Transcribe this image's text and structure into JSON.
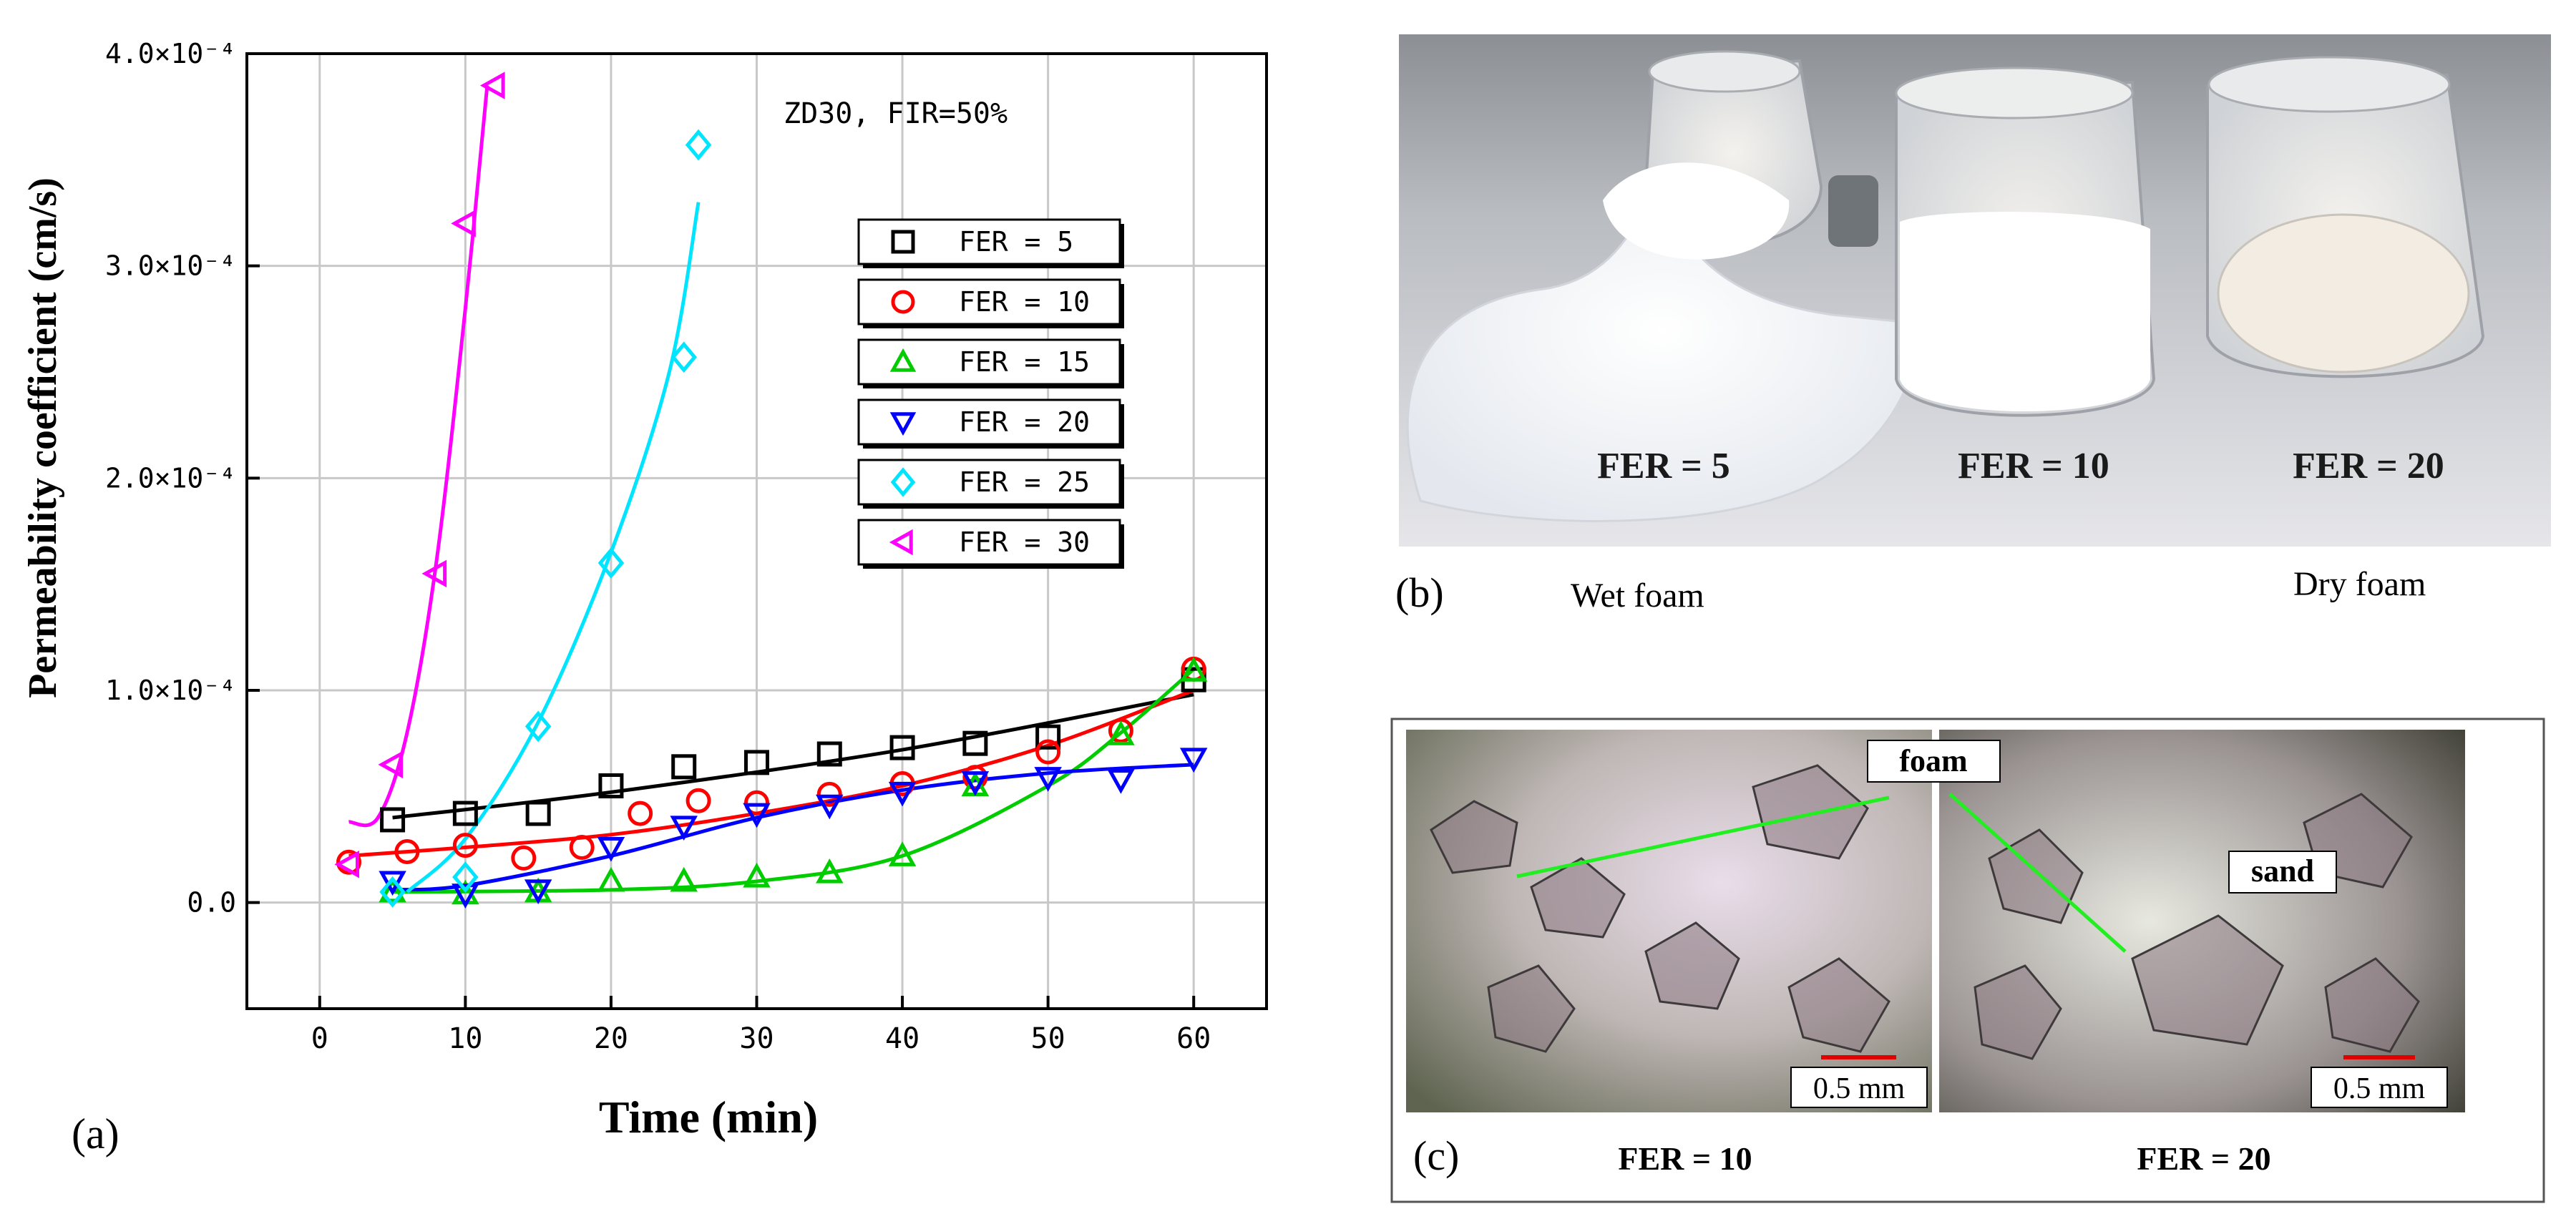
{
  "panel_a": {
    "label": "(a)",
    "annotation": "ZD30,  FIR=50%",
    "chart_data": {
      "type": "scatter",
      "title": "",
      "xlabel": "Time (min)",
      "ylabel": "Permeability coefficient (cm/s)",
      "xlim": [
        -5,
        65
      ],
      "ylim": [
        -0.5,
        4.0
      ],
      "x_ticks": [
        0,
        10,
        20,
        30,
        40,
        50,
        60
      ],
      "y_ticks": [
        {
          "value": 0.0,
          "label": "0.0"
        },
        {
          "value": 1.0,
          "label": "1.0×10⁻⁴"
        },
        {
          "value": 2.0,
          "label": "2.0×10⁻⁴"
        },
        {
          "value": 3.0,
          "label": "3.0×10⁻⁴"
        },
        {
          "value": 4.0,
          "label": "4.0×10⁻⁴"
        }
      ],
      "grid": true,
      "legend_position": "right",
      "series": [
        {
          "name": "FER = 5",
          "marker": "square",
          "color": "#000000",
          "x": [
            5,
            10,
            15,
            20,
            25,
            30,
            35,
            40,
            45,
            50,
            60
          ],
          "y": [
            0.39,
            0.42,
            0.42,
            0.55,
            0.64,
            0.66,
            0.7,
            0.73,
            0.75,
            0.78,
            1.05
          ],
          "fit": [
            [
              5,
              0.4
            ],
            [
              20,
              0.52
            ],
            [
              40,
              0.72
            ],
            [
              60,
              0.98
            ]
          ]
        },
        {
          "name": "FER = 10",
          "marker": "circle",
          "color": "#ff0000",
          "x": [
            2,
            6,
            10,
            14,
            18,
            22,
            26,
            30,
            35,
            40,
            45,
            50,
            55,
            60
          ],
          "y": [
            0.19,
            0.24,
            0.27,
            0.21,
            0.26,
            0.42,
            0.48,
            0.47,
            0.51,
            0.56,
            0.59,
            0.71,
            0.81,
            1.1
          ],
          "fit": [
            [
              2,
              0.22
            ],
            [
              10,
              0.26
            ],
            [
              20,
              0.32
            ],
            [
              30,
              0.42
            ],
            [
              40,
              0.55
            ],
            [
              50,
              0.74
            ],
            [
              60,
              1.0
            ]
          ]
        },
        {
          "name": "FER = 15",
          "marker": "triangle-up",
          "color": "#00cc00",
          "x": [
            5,
            10,
            15,
            20,
            25,
            30,
            35,
            40,
            45,
            55,
            60
          ],
          "y": [
            0.05,
            0.04,
            0.05,
            0.1,
            0.1,
            0.12,
            0.14,
            0.22,
            0.55,
            0.79,
            1.09
          ],
          "fit": [
            [
              5,
              0.05
            ],
            [
              20,
              0.06
            ],
            [
              30,
              0.1
            ],
            [
              40,
              0.22
            ],
            [
              50,
              0.55
            ],
            [
              55,
              0.8
            ],
            [
              60,
              1.1
            ]
          ]
        },
        {
          "name": "FER = 20",
          "marker": "triangle-down",
          "color": "#0000ff",
          "x": [
            5,
            10,
            15,
            20,
            25,
            30,
            35,
            40,
            45,
            50,
            55,
            60
          ],
          "y": [
            0.1,
            0.04,
            0.06,
            0.26,
            0.36,
            0.42,
            0.46,
            0.52,
            0.57,
            0.59,
            0.58,
            0.68
          ],
          "fit": [
            [
              5,
              0.06
            ],
            [
              10,
              0.08
            ],
            [
              20,
              0.22
            ],
            [
              30,
              0.4
            ],
            [
              40,
              0.53
            ],
            [
              50,
              0.61
            ],
            [
              60,
              0.65
            ]
          ]
        },
        {
          "name": "FER = 25",
          "marker": "diamond",
          "color": "#00e5ff",
          "x": [
            5,
            10,
            15,
            20,
            25,
            26
          ],
          "y": [
            0.05,
            0.12,
            0.83,
            1.6,
            2.57,
            3.57
          ],
          "fit": [
            [
              6,
              0.05
            ],
            [
              10,
              0.3
            ],
            [
              15,
              0.85
            ],
            [
              20,
              1.65
            ],
            [
              24,
              2.5
            ],
            [
              26,
              3.3
            ]
          ]
        },
        {
          "name": "FER = 30",
          "marker": "triangle-left",
          "color": "#ff00ff",
          "x": [
            2,
            5,
            8,
            10,
            12
          ],
          "y": [
            0.18,
            0.65,
            1.55,
            3.2,
            3.85
          ],
          "fit": [
            [
              2,
              0.38
            ],
            [
              4,
              0.4
            ],
            [
              6,
              0.8
            ],
            [
              8,
              1.6
            ],
            [
              10,
              2.8
            ],
            [
              11.5,
              3.85
            ]
          ]
        }
      ]
    }
  },
  "panel_b": {
    "label": "(b)",
    "caption_left": "Wet foam",
    "caption_right": "Dry foam",
    "cup_labels": [
      "FER = 5",
      "FER = 10",
      "FER = 20"
    ]
  },
  "panel_c": {
    "label": "(c)",
    "callout_foam": "foam",
    "callout_sand": "sand",
    "scale_left": "0.5 mm",
    "scale_right": "0.5 mm",
    "caption_left": "FER = 10",
    "caption_right": "FER = 20"
  }
}
